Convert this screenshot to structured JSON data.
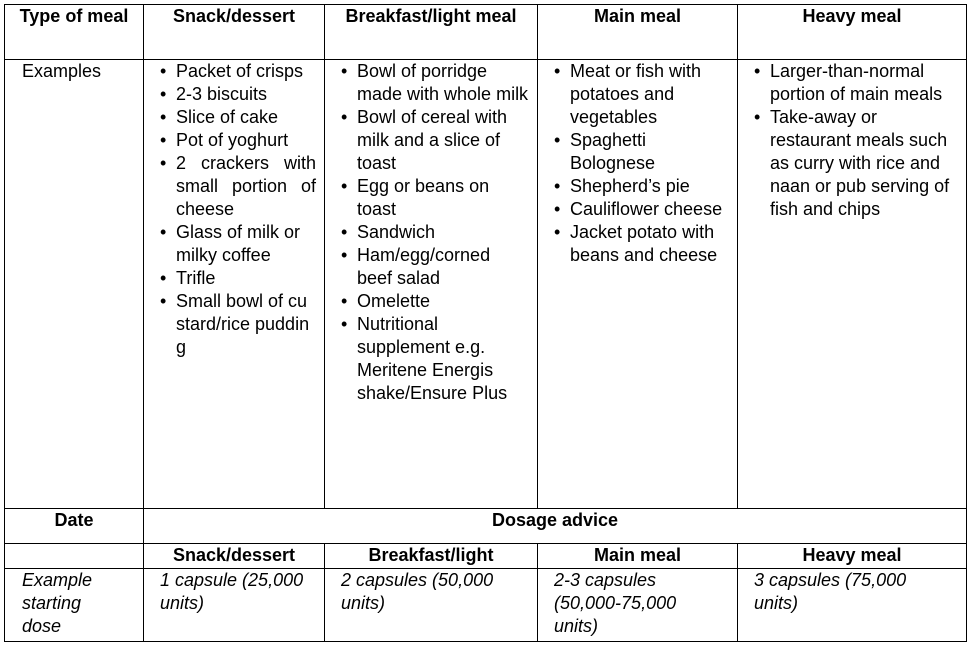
{
  "header": {
    "columns": [
      "Type of meal",
      "Snack/dessert",
      "Breakfast/light meal",
      "Main meal",
      "Heavy meal"
    ]
  },
  "examples": {
    "label": "Examples",
    "lists": [
      [
        "Packet of crisps",
        "2-3 biscuits",
        "Slice of cake",
        "Pot of yoghurt",
        "2 crackers with small portion of cheese",
        "Glass of milk or milky coffee",
        "Trifle",
        "Small bowl of custard/rice pudding"
      ],
      [
        "Bowl of porridge made with whole milk",
        "Bowl of cereal with milk and a slice of toast",
        "Egg or beans on toast",
        "Sandwich",
        "Ham/egg/corned beef salad",
        "Omelette",
        "Nutritional supplement e.g. Meritene Energis shake/Ensure Plus"
      ],
      [
        "Meat or fish with potatoes and vegetables",
        "Spaghetti Bolognese",
        "Shepherd’s pie",
        "Cauliflower cheese",
        "Jacket potato with beans and cheese"
      ],
      [
        "Larger-than-normal portion of main meals",
        "Take-away or restaurant meals such as curry with rice and naan or pub serving of fish and chips"
      ]
    ]
  },
  "dosage": {
    "date_label": "Date",
    "title": "Dosage advice",
    "columns": [
      "Snack/dessert",
      "Breakfast/light",
      "Main meal",
      "Heavy meal"
    ],
    "row_label": "Example starting dose",
    "doses": [
      "1 capsule (25,000 units)",
      "2 capsules (50,000 units)",
      "2-3 capsules (50,000-75,000 units)",
      "3 capsules (75,000 units)"
    ]
  }
}
